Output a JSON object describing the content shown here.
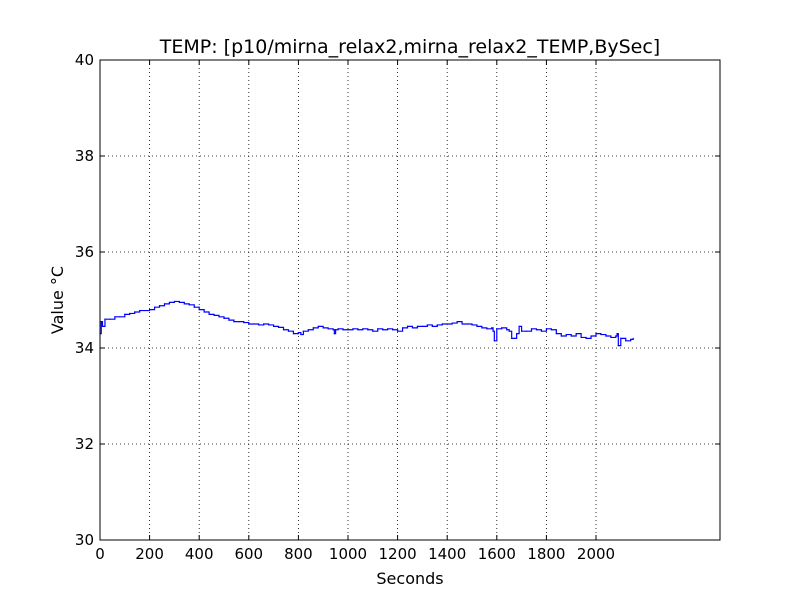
{
  "chart_data": {
    "type": "line",
    "title": "TEMP: [p10/mirna_relax2,mirna_relax2_TEMP,BySec]",
    "xlabel": "Seconds",
    "ylabel": "Value °C",
    "xlim": [
      0,
      2500
    ],
    "ylim": [
      30,
      40
    ],
    "xticks": [
      "0",
      "200",
      "400",
      "600",
      "800",
      "1000",
      "1200",
      "1400",
      "1600",
      "1800",
      "2000"
    ],
    "yticks": [
      "30",
      "32",
      "34",
      "36",
      "38",
      "40"
    ],
    "grid": true,
    "colors": {
      "line": "#0000ff",
      "grid": "#000000"
    },
    "series": [
      {
        "x": [
          0,
          5,
          10,
          20,
          40,
          60,
          80,
          100,
          120,
          140,
          160,
          180,
          200,
          220,
          240,
          260,
          280,
          300,
          320,
          340,
          360,
          380,
          400,
          420,
          440,
          460,
          480,
          500,
          520,
          540,
          560,
          580,
          600,
          620,
          640,
          660,
          680,
          700,
          720,
          740,
          760,
          780,
          800,
          810,
          820,
          840,
          860,
          880,
          900,
          920,
          940,
          945,
          950,
          960,
          980,
          1000,
          1020,
          1040,
          1060,
          1080,
          1100,
          1120,
          1140,
          1160,
          1180,
          1200,
          1220,
          1240,
          1260,
          1280,
          1300,
          1320,
          1340,
          1360,
          1380,
          1400,
          1420,
          1440,
          1460,
          1480,
          1500,
          1520,
          1540,
          1560,
          1580,
          1585,
          1590,
          1600,
          1620,
          1640,
          1650,
          1660,
          1670,
          1680,
          1690,
          1700,
          1720,
          1740,
          1760,
          1780,
          1800,
          1820,
          1840,
          1860,
          1880,
          1900,
          1920,
          1940,
          1960,
          1980,
          2000,
          2020,
          2040,
          2060,
          2080,
          2085,
          2090,
          2100,
          2120,
          2140,
          2150
        ],
        "y": [
          34.3,
          34.55,
          34.45,
          34.6,
          34.6,
          34.65,
          34.65,
          34.7,
          34.72,
          34.75,
          34.78,
          34.78,
          34.8,
          34.85,
          34.88,
          34.92,
          34.95,
          34.97,
          34.95,
          34.92,
          34.9,
          34.85,
          34.8,
          34.75,
          34.7,
          34.68,
          34.65,
          34.62,
          34.58,
          34.55,
          34.55,
          34.53,
          34.5,
          34.5,
          34.48,
          34.5,
          34.48,
          34.45,
          34.43,
          34.38,
          34.35,
          34.3,
          34.32,
          34.28,
          34.35,
          34.38,
          34.42,
          34.45,
          34.42,
          34.4,
          34.38,
          34.3,
          34.38,
          34.4,
          34.38,
          34.38,
          34.4,
          34.38,
          34.4,
          34.38,
          34.35,
          34.4,
          34.38,
          34.4,
          34.38,
          34.35,
          34.42,
          34.45,
          34.42,
          34.45,
          34.45,
          34.48,
          34.45,
          34.48,
          34.5,
          34.5,
          34.52,
          34.55,
          34.5,
          34.5,
          34.48,
          34.45,
          34.42,
          34.4,
          34.42,
          34.35,
          34.15,
          34.4,
          34.42,
          34.38,
          34.35,
          34.2,
          34.2,
          34.3,
          34.45,
          34.35,
          34.35,
          34.4,
          34.38,
          34.35,
          34.4,
          34.38,
          34.3,
          34.25,
          34.28,
          34.25,
          34.3,
          34.22,
          34.2,
          34.25,
          34.3,
          34.28,
          34.25,
          34.22,
          34.25,
          34.3,
          34.05,
          34.2,
          34.15,
          34.18,
          34.2
        ]
      }
    ]
  }
}
